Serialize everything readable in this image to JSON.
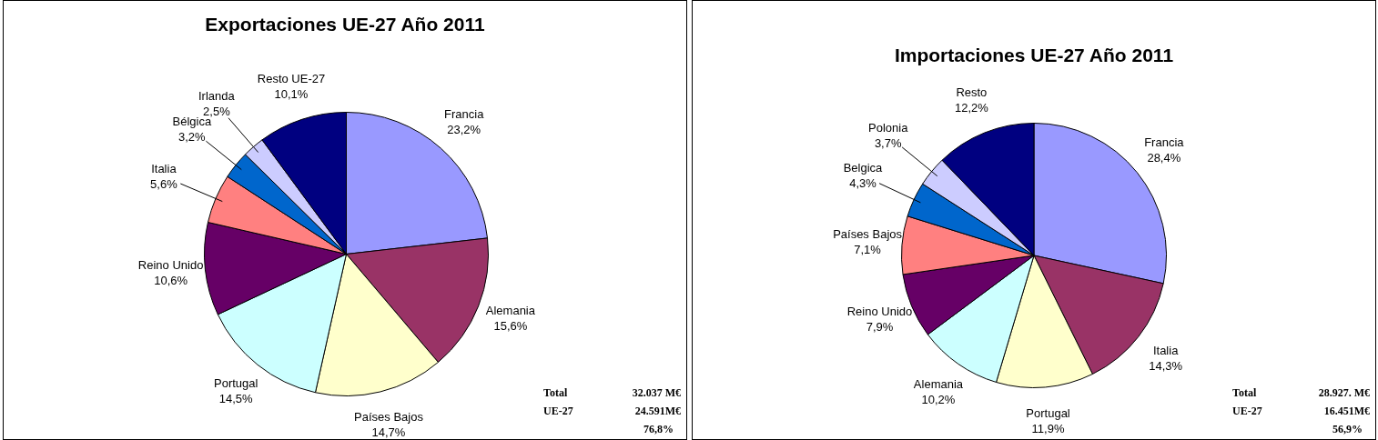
{
  "chart_data": [
    {
      "type": "pie",
      "title": "Exportaciones UE-27 Año 2011",
      "categories": [
        "Francia",
        "Alemania",
        "Países Bajos",
        "Portugal",
        "Reino Unido",
        "Italia",
        "Bélgica",
        "Irlanda",
        "Resto UE-27"
      ],
      "values": [
        23.2,
        15.6,
        14.7,
        14.5,
        10.6,
        5.6,
        3.2,
        2.5,
        10.1
      ],
      "colors": [
        "#9999ff",
        "#993366",
        "#ffffcc",
        "#ccffff",
        "#660066",
        "#ff8080",
        "#0066cc",
        "#ccccff",
        "#000080"
      ],
      "value_labels": [
        "23,2%",
        "15,6%",
        "14,7%",
        "14,5%",
        "10,6%",
        "5,6%",
        "3,2%",
        "2,5%",
        "10,1%"
      ],
      "legend": false,
      "annotations": [
        "Total",
        "32.037 M€",
        "UE-27",
        "24.591M€",
        "76,8%"
      ]
    },
    {
      "type": "pie",
      "title": "Importaciones UE-27 Año 2011",
      "categories": [
        "Francia",
        "Italia",
        "Portugal",
        "Alemania",
        "Reino Unido",
        "Países Bajos",
        "Belgica",
        "Polonia",
        "Resto"
      ],
      "values": [
        28.4,
        14.3,
        11.9,
        10.2,
        7.9,
        7.1,
        4.3,
        3.7,
        12.2
      ],
      "colors": [
        "#9999ff",
        "#993366",
        "#ffffcc",
        "#ccffff",
        "#660066",
        "#ff8080",
        "#0066cc",
        "#ccccff",
        "#000080"
      ],
      "value_labels": [
        "28,4%",
        "14,3%",
        "11,9%",
        "10,2%",
        "7,9%",
        "7,1%",
        "4,3%",
        "3,7%",
        "12,2%"
      ],
      "legend": false,
      "annotations": [
        "Total",
        "28.927. M€",
        "UE-27",
        "16.451M€",
        "56,9%"
      ]
    }
  ]
}
